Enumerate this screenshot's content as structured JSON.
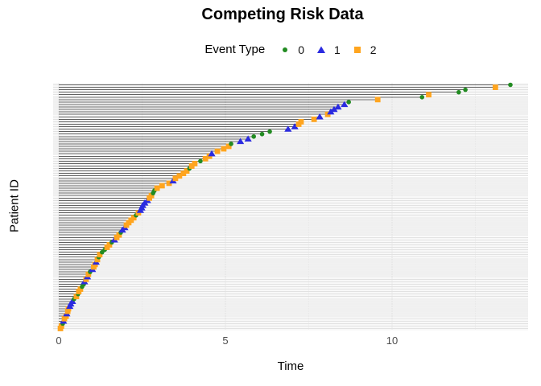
{
  "chart_data": {
    "type": "scatter",
    "subtype": "competing-risks-event-plot",
    "title": "Competing Risk Data",
    "legend_title": "Event Type",
    "xlabel": "Time",
    "ylabel": "Patient ID",
    "x_ticks": [
      0,
      5,
      10
    ],
    "x_minor_gridlines": [
      2.5,
      7.5,
      12.5
    ],
    "xlim": [
      -0.2,
      14.1
    ],
    "n_patients": 100,
    "grid": true,
    "legend_position": "top",
    "event_types": [
      {
        "label": "0",
        "shape": "circle",
        "color": "#228B22"
      },
      {
        "label": "1",
        "shape": "triangle",
        "color": "#2B2BE0"
      },
      {
        "label": "2",
        "shape": "square",
        "color": "#FFA51F"
      }
    ],
    "segment_color": "#606060",
    "gridline_major_color": "#E2E2E2",
    "gridline_minor_color": "#F1F1F1",
    "axis_text_color": "#4D4D4D",
    "patients": {
      "times": [
        0.05,
        0.08,
        0.12,
        0.14,
        0.17,
        0.22,
        0.24,
        0.27,
        0.29,
        0.33,
        0.36,
        0.41,
        0.46,
        0.53,
        0.58,
        0.6,
        0.65,
        0.7,
        0.75,
        0.77,
        0.82,
        0.86,
        0.89,
        0.94,
        1.01,
        1.05,
        1.09,
        1.12,
        1.16,
        1.2,
        1.23,
        1.3,
        1.38,
        1.45,
        1.52,
        1.59,
        1.67,
        1.74,
        1.81,
        1.86,
        1.91,
        1.98,
        2.03,
        2.1,
        2.17,
        2.25,
        2.32,
        2.39,
        2.45,
        2.49,
        2.52,
        2.58,
        2.66,
        2.72,
        2.78,
        2.83,
        2.87,
        2.95,
        3.1,
        3.31,
        3.43,
        3.5,
        3.62,
        3.74,
        3.84,
        3.92,
        3.99,
        4.08,
        4.25,
        4.4,
        4.52,
        4.59,
        4.76,
        4.95,
        5.1,
        5.17,
        5.45,
        5.68,
        5.85,
        6.1,
        6.33,
        6.88,
        7.08,
        7.2,
        7.27,
        7.66,
        7.83,
        8.07,
        8.16,
        8.26,
        8.38,
        8.57,
        8.7,
        9.57,
        10.9,
        11.1,
        12.0,
        12.2,
        13.1,
        13.55
      ],
      "events": [
        2,
        2,
        0,
        1,
        2,
        2,
        1,
        2,
        2,
        1,
        1,
        1,
        0,
        2,
        0,
        2,
        2,
        0,
        0,
        1,
        2,
        1,
        2,
        0,
        1,
        2,
        2,
        1,
        2,
        0,
        2,
        0,
        0,
        2,
        2,
        0,
        1,
        2,
        2,
        0,
        1,
        1,
        2,
        2,
        2,
        2,
        0,
        2,
        1,
        1,
        1,
        1,
        1,
        2,
        2,
        0,
        0,
        2,
        2,
        2,
        1,
        2,
        2,
        2,
        2,
        0,
        2,
        2,
        0,
        2,
        2,
        1,
        2,
        2,
        2,
        0,
        1,
        1,
        0,
        0,
        0,
        1,
        1,
        2,
        2,
        2,
        1,
        2,
        1,
        1,
        1,
        1,
        0,
        2,
        0,
        2,
        0,
        0,
        2,
        0
      ]
    }
  }
}
